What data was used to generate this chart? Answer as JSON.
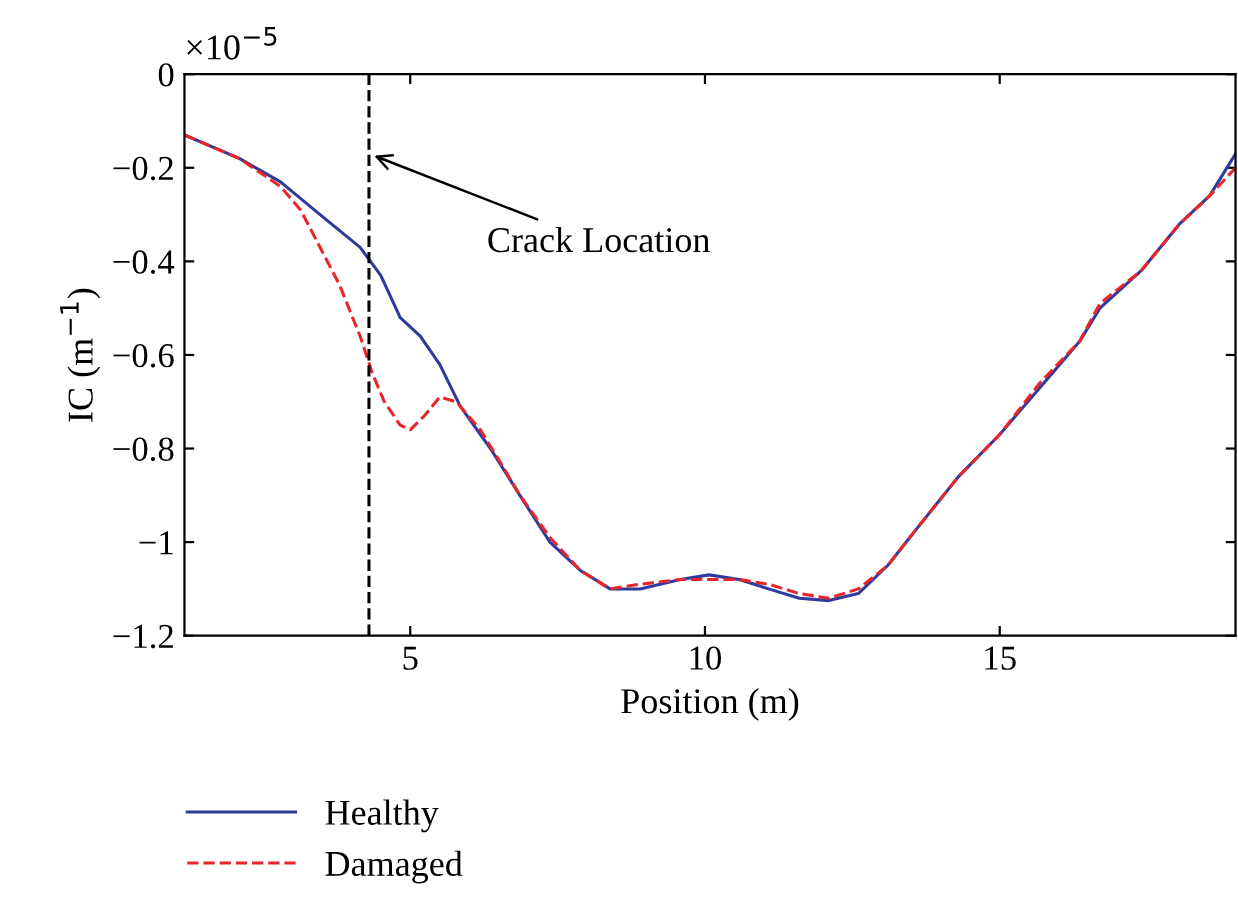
{
  "chart_data": {
    "type": "line",
    "xlabel": "Position (m)",
    "ylabel": "IC (m$^{−1}$)",
    "xlim": [
      1.17,
      19
    ],
    "xticks": [
      5,
      10,
      15
    ],
    "ylim": [
      -1.2,
      0
    ],
    "yticks": [
      0,
      {
        "value": -0.2,
        "label": "−0.2"
      },
      {
        "value": -0.4,
        "label": "−0.4"
      },
      {
        "value": -0.6,
        "label": "−0.6"
      },
      {
        "value": -0.8,
        "label": "−0.8"
      },
      {
        "value": -1,
        "label": "−1"
      },
      {
        "value": -1.2,
        "label": "−1.2"
      }
    ],
    "grid": false,
    "legend": "bottom left",
    "marker": "none",
    "annotations": [
      "×10$^{−5}$",
      {
        "text": "Crack Location",
        "x": 4.3,
        "y": -0.17
      }
    ],
    "ref_lines": [
      {
        "axis": "x",
        "value": 4.3,
        "color": "#000000",
        "line_style": "dashed"
      }
    ],
    "series": [
      {
        "name": "Healthy",
        "color": "#2e3a9c",
        "line_style": "solid",
        "x": [
          1.17,
          2.1,
          2.8,
          3.47,
          4.15,
          4.5,
          4.83,
          5.17,
          5.5,
          5.85,
          6.36,
          6.86,
          7.37,
          7.88,
          8.39,
          8.9,
          9.58,
          10.07,
          10.58,
          11.08,
          11.6,
          12.1,
          12.6,
          13.1,
          13.6,
          14.3,
          15,
          15.68,
          16.36,
          16.7,
          17.4,
          18.05,
          18.56,
          19
        ],
        "values": [
          -0.13,
          -0.18,
          -0.23,
          -0.3,
          -0.37,
          -0.43,
          -0.52,
          -0.56,
          -0.62,
          -0.71,
          -0.8,
          -0.9,
          -1.0,
          -1.06,
          -1.1,
          -1.1,
          -1.08,
          -1.07,
          -1.08,
          -1.1,
          -1.12,
          -1.125,
          -1.11,
          -1.05,
          -0.97,
          -0.86,
          -0.77,
          -0.67,
          -0.57,
          -0.5,
          -0.42,
          -0.32,
          -0.26,
          -0.17
        ]
      },
      {
        "name": "Damaged",
        "color": "#e8262a",
        "line_style": "dashed",
        "x": [
          1.17,
          2.1,
          2.8,
          3.14,
          3.47,
          3.8,
          4.15,
          4.36,
          4.56,
          4.83,
          5.0,
          5.24,
          5.5,
          5.78,
          6.19,
          6.53,
          6.86,
          7.37,
          7.88,
          8.39,
          8.9,
          9.58,
          10.07,
          10.58,
          11.08,
          11.6,
          12.1,
          12.6,
          13.1,
          13.6,
          14.3,
          15,
          15.68,
          16.36,
          16.7,
          17.4,
          18.05,
          18.56,
          19
        ],
        "values": [
          -0.13,
          -0.18,
          -0.24,
          -0.29,
          -0.37,
          -0.45,
          -0.56,
          -0.64,
          -0.7,
          -0.75,
          -0.76,
          -0.73,
          -0.69,
          -0.7,
          -0.76,
          -0.83,
          -0.9,
          -0.99,
          -1.06,
          -1.1,
          -1.09,
          -1.08,
          -1.08,
          -1.08,
          -1.09,
          -1.11,
          -1.12,
          -1.1,
          -1.05,
          -0.97,
          -0.86,
          -0.77,
          -0.66,
          -0.57,
          -0.49,
          -0.42,
          -0.32,
          -0.26,
          -0.2
        ]
      }
    ]
  }
}
